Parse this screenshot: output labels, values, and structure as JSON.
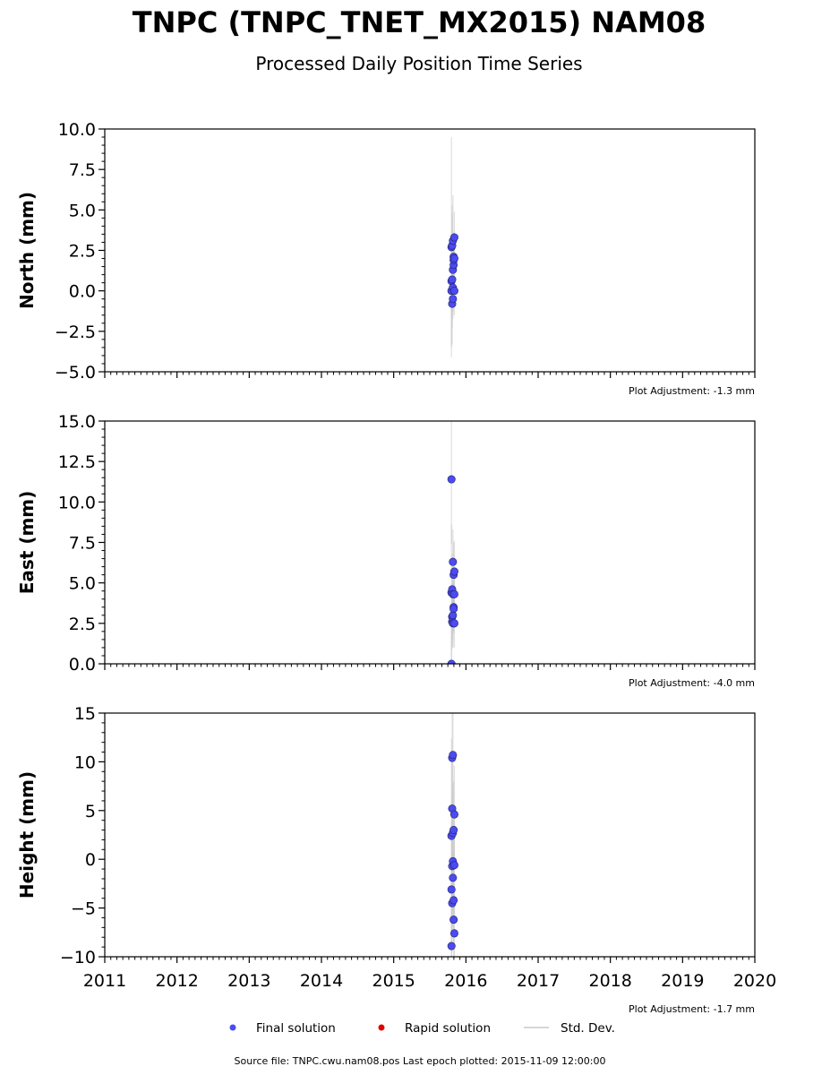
{
  "title": "TNPC (TNPC_TNET_MX2015) NAM08",
  "subtitle": "Processed Daily Position Time Series",
  "footer": "Source file: TNPC.cwu.nam08.pos  Last epoch plotted: 2015-11-09 12:00:00",
  "colors": {
    "final": "#4b4bf0",
    "final_edge": "#20206a",
    "rapid": "#e00000",
    "std": "#c8c8c8",
    "axis": "#000000"
  },
  "legend": [
    {
      "label": "Final solution",
      "marker": "dot",
      "color": "#4b4bf0"
    },
    {
      "label": "Rapid solution",
      "marker": "dot",
      "color": "#e00000"
    },
    {
      "label": "Std. Dev.",
      "marker": "line",
      "color": "#c8c8c8"
    }
  ],
  "chart_data": [
    {
      "type": "scatter",
      "id": "north",
      "ylabel": "North (mm)",
      "ylim": [
        -5,
        10
      ],
      "yticks": [
        -5.0,
        -2.5,
        0.0,
        2.5,
        5.0,
        7.5,
        10.0
      ],
      "ytick_labels": [
        "−5.0",
        "−2.5",
        "0.0",
        "2.5",
        "5.0",
        "7.5",
        "10.0"
      ],
      "xlim": [
        2011,
        2020
      ],
      "xticks": [
        2011,
        2012,
        2013,
        2014,
        2015,
        2016,
        2017,
        2018,
        2019,
        2020
      ],
      "show_xtick_labels": false,
      "adjustment": "Plot Adjustment: -1.3 mm",
      "series": [
        {
          "name": "Final solution",
          "x": [
            2015.8,
            2015.8,
            2015.8,
            2015.81,
            2015.81,
            2015.81,
            2015.82,
            2015.82,
            2015.82,
            2015.82,
            2015.83,
            2015.83,
            2015.83,
            2015.84,
            2015.84,
            2015.84
          ],
          "y": [
            2.7,
            0.0,
            0.6,
            0.7,
            -0.8,
            2.8,
            1.3,
            -0.5,
            0.2,
            3.1,
            1.6,
            1.9,
            2.1,
            3.3,
            2.0,
            0.0
          ],
          "std": [
            6.8,
            3.5,
            2.5,
            4.0,
            1.5,
            2.5,
            1.5,
            1.2,
            1.5,
            2.8,
            1.5,
            1.4,
            1.5,
            1.6,
            1.6,
            1.5
          ]
        }
      ]
    },
    {
      "type": "scatter",
      "id": "east",
      "ylabel": "East (mm)",
      "ylim": [
        0,
        15
      ],
      "yticks": [
        0.0,
        2.5,
        5.0,
        7.5,
        10.0,
        12.5,
        15.0
      ],
      "ytick_labels": [
        "0.0",
        "2.5",
        "5.0",
        "7.5",
        "10.0",
        "12.5",
        "15.0"
      ],
      "xlim": [
        2011,
        2020
      ],
      "xticks": [
        2011,
        2012,
        2013,
        2014,
        2015,
        2016,
        2017,
        2018,
        2019,
        2020
      ],
      "show_xtick_labels": false,
      "adjustment": "Plot Adjustment: -4.0 mm",
      "series": [
        {
          "name": "Final solution",
          "x": [
            2015.8,
            2015.8,
            2015.8,
            2015.81,
            2015.81,
            2015.81,
            2015.82,
            2015.82,
            2015.82,
            2015.82,
            2015.83,
            2015.83,
            2015.83,
            2015.84,
            2015.84,
            2015.84
          ],
          "y": [
            11.4,
            0.0,
            4.4,
            2.9,
            2.6,
            4.6,
            6.3,
            3.0,
            4.3,
            2.5,
            3.5,
            5.5,
            3.4,
            5.7,
            4.3,
            2.5
          ],
          "std": [
            4.0,
            3.5,
            4.2,
            2.0,
            1.5,
            2.2,
            2.0,
            1.5,
            2.0,
            1.5,
            1.5,
            2.0,
            1.5,
            1.9,
            1.5,
            1.5
          ]
        }
      ]
    },
    {
      "type": "scatter",
      "id": "height",
      "ylabel": "Height (mm)",
      "ylim": [
        -10,
        15
      ],
      "yticks": [
        -10,
        -5,
        0,
        5,
        10,
        15
      ],
      "ytick_labels": [
        "−10",
        "−5",
        "0",
        "5",
        "10",
        "15"
      ],
      "xlim": [
        2011,
        2020
      ],
      "xticks": [
        2011,
        2012,
        2013,
        2014,
        2015,
        2016,
        2017,
        2018,
        2019,
        2020
      ],
      "xtick_labels": [
        "2011",
        "2012",
        "2013",
        "2014",
        "2015",
        "2016",
        "2017",
        "2018",
        "2019",
        "2020"
      ],
      "show_xtick_labels": true,
      "adjustment": "Plot Adjustment: -1.7 mm",
      "series": [
        {
          "name": "Final solution",
          "x": [
            2015.8,
            2015.8,
            2015.8,
            2015.81,
            2015.81,
            2015.81,
            2015.81,
            2015.82,
            2015.82,
            2015.82,
            2015.82,
            2015.83,
            2015.83,
            2015.83,
            2015.84,
            2015.84,
            2015.84
          ],
          "y": [
            -8.9,
            2.4,
            -3.1,
            10.4,
            -0.7,
            -4.5,
            5.2,
            -0.2,
            -1.9,
            10.7,
            2.7,
            -6.2,
            3.0,
            -4.2,
            -7.6,
            4.6,
            -0.6
          ],
          "std": [
            9.0,
            10.0,
            7.0,
            6.0,
            7.0,
            5.0,
            6.0,
            5.0,
            5.0,
            6.0,
            5.0,
            5.0,
            5.0,
            5.0,
            5.0,
            5.0,
            5.0
          ]
        }
      ]
    }
  ]
}
